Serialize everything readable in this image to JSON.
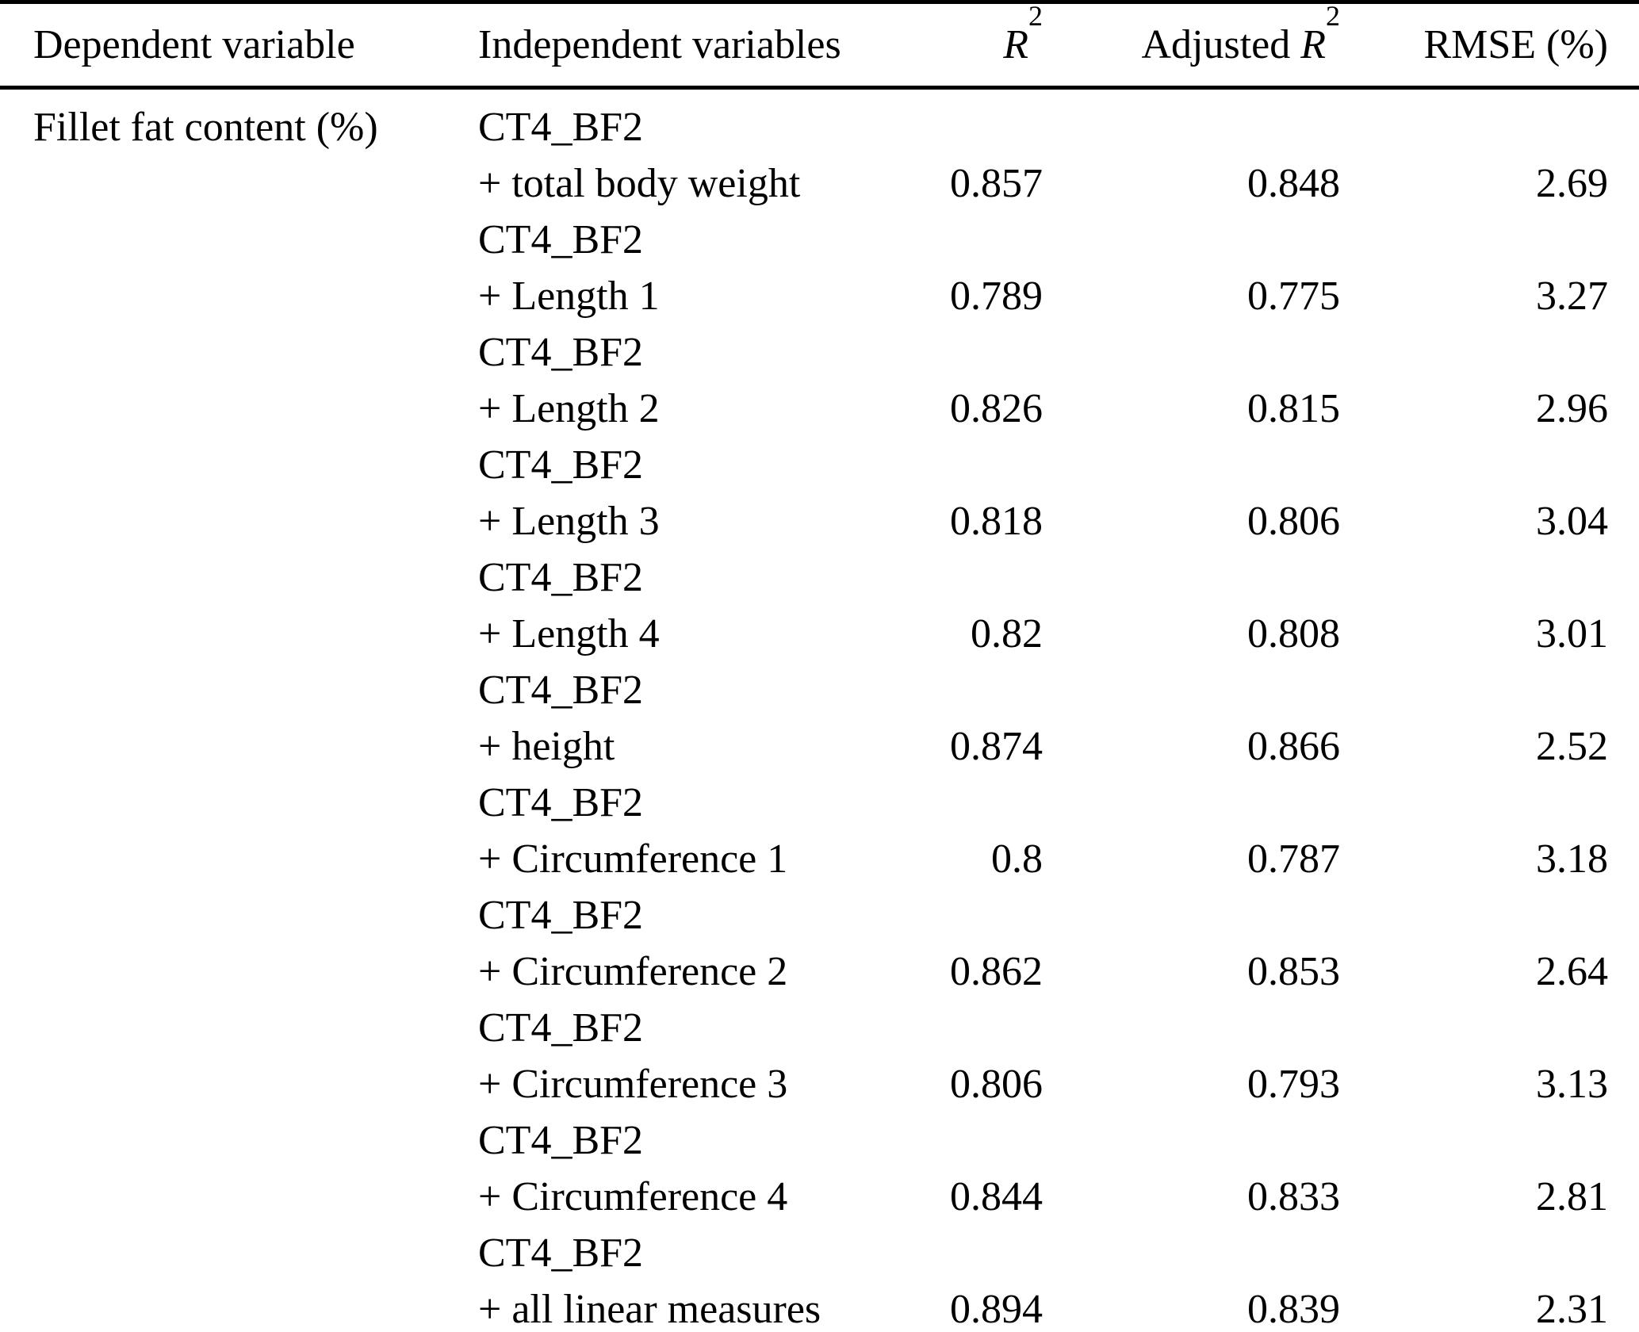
{
  "table": {
    "header": {
      "dependent": "Dependent variable",
      "independent": "Independent variables",
      "r2_base": "R",
      "r2_sup": "2",
      "adjusted_prefix": "Adjusted ",
      "rmse": "RMSE (%)"
    },
    "rows": [
      {
        "dependent": "Fillet fat content (%)",
        "base": "CT4_BF2",
        "added": "+ total body weight",
        "r2": "0.857",
        "adj_r2": "0.848",
        "rmse": "2.69"
      },
      {
        "dependent": "",
        "base": "CT4_BF2",
        "added": "+ Length 1",
        "r2": "0.789",
        "adj_r2": "0.775",
        "rmse": "3.27"
      },
      {
        "dependent": "",
        "base": "CT4_BF2",
        "added": "+ Length 2",
        "r2": "0.826",
        "adj_r2": "0.815",
        "rmse": "2.96"
      },
      {
        "dependent": "",
        "base": "CT4_BF2",
        "added": "+ Length 3",
        "r2": "0.818",
        "adj_r2": "0.806",
        "rmse": "3.04"
      },
      {
        "dependent": "",
        "base": "CT4_BF2",
        "added": "+ Length 4",
        "r2": "0.82",
        "adj_r2": "0.808",
        "rmse": "3.01"
      },
      {
        "dependent": "",
        "base": "CT4_BF2",
        "added": "+ height",
        "r2": "0.874",
        "adj_r2": "0.866",
        "rmse": "2.52"
      },
      {
        "dependent": "",
        "base": "CT4_BF2",
        "added": "+ Circumference 1",
        "r2": "0.8",
        "adj_r2": "0.787",
        "rmse": "3.18"
      },
      {
        "dependent": "",
        "base": "CT4_BF2",
        "added": "+ Circumference 2",
        "r2": "0.862",
        "adj_r2": "0.853",
        "rmse": "2.64"
      },
      {
        "dependent": "",
        "base": "CT4_BF2",
        "added": "+ Circumference 3",
        "r2": "0.806",
        "adj_r2": "0.793",
        "rmse": "3.13"
      },
      {
        "dependent": "",
        "base": "CT4_BF2",
        "added": "+ Circumference 4",
        "r2": "0.844",
        "adj_r2": "0.833",
        "rmse": "2.81"
      },
      {
        "dependent": "",
        "base": "CT4_BF2",
        "added": "+ all linear measures",
        "r2": "0.894",
        "adj_r2": "0.839",
        "rmse": "2.31"
      }
    ]
  }
}
